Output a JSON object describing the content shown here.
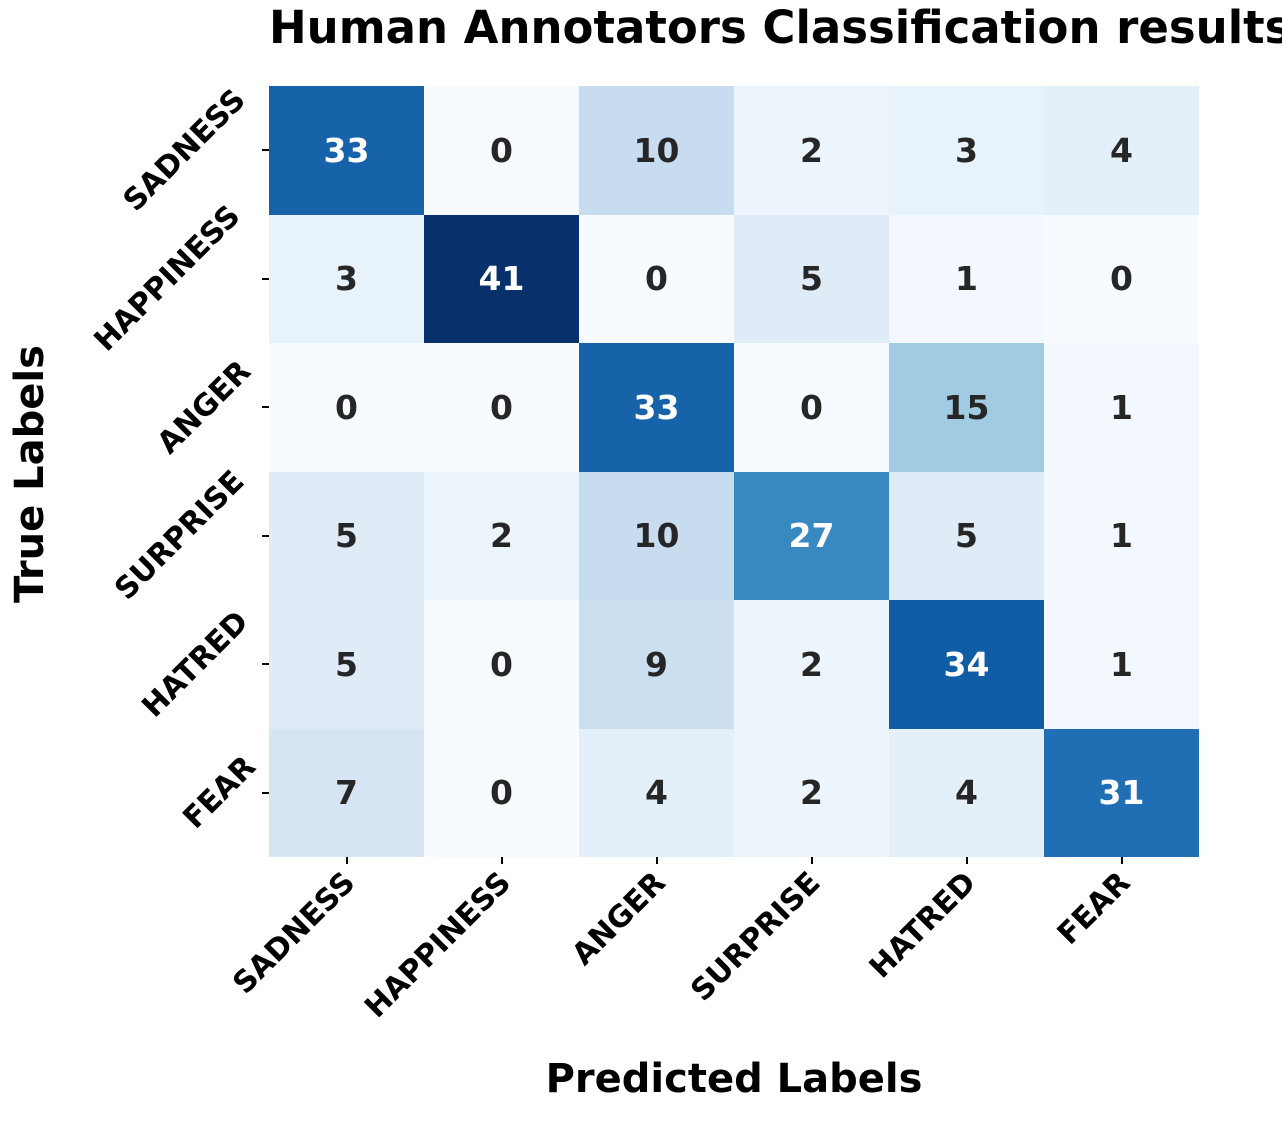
{
  "chart_data": {
    "type": "heatmap",
    "title": "Human Annotators Classification results",
    "xlabel": "Predicted Labels",
    "ylabel": "True Labels",
    "categories": [
      "SADNESS",
      "HAPPINESS",
      "ANGER",
      "SURPRISE",
      "HATRED",
      "FEAR"
    ],
    "x_tick_labels": [
      "SADNESS",
      "HAPPINESS",
      "ANGER",
      "SURPRISE",
      "HATRED",
      "FEAR"
    ],
    "y_tick_labels": [
      "SADNESS",
      "HAPPINESS",
      "ANGER",
      "SURPRISE",
      "HATRED",
      "FEAR"
    ],
    "matrix": [
      [
        33,
        0,
        10,
        2,
        3,
        4
      ],
      [
        3,
        41,
        0,
        5,
        1,
        0
      ],
      [
        0,
        0,
        33,
        0,
        15,
        1
      ],
      [
        5,
        2,
        10,
        27,
        5,
        1
      ],
      [
        5,
        0,
        9,
        2,
        34,
        1
      ],
      [
        7,
        0,
        4,
        2,
        4,
        31
      ]
    ],
    "vmin": 0,
    "vmax": 41,
    "colormap": "Blues",
    "colormap_stops": [
      "#f7fbff",
      "#deebf7",
      "#c6dbef",
      "#9ecae1",
      "#6baed6",
      "#4292c6",
      "#2171b5",
      "#08519c",
      "#08306b"
    ],
    "annot_color_dark": "#262626",
    "annot_color_light": "#ffffff",
    "tick_color": "#000000",
    "grid": false,
    "legend": "none",
    "tick_label_rotation_deg": 45
  }
}
